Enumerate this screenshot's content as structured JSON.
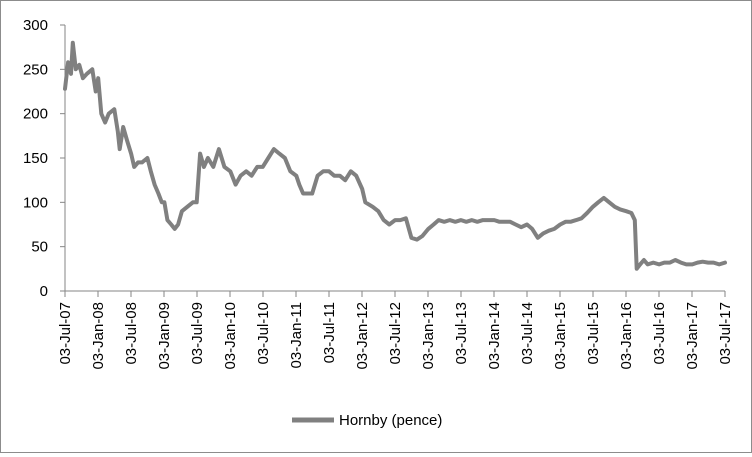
{
  "chart_data": {
    "type": "line",
    "title": "",
    "xlabel": "",
    "ylabel": "",
    "ylim": [
      0,
      300
    ],
    "y_ticks": [
      0,
      50,
      100,
      150,
      200,
      250,
      300
    ],
    "x_range": [
      "2007-07-03",
      "2017-07-03"
    ],
    "x_tick_labels": [
      "03-Jul-07",
      "03-Jan-08",
      "03-Jul-08",
      "03-Jan-09",
      "03-Jul-09",
      "03-Jan-10",
      "03-Jul-10",
      "03-Jan-11",
      "03-Jul-11",
      "03-Jan-12",
      "03-Jul-12",
      "03-Jan-13",
      "03-Jul-13",
      "03-Jan-14",
      "03-Jul-14",
      "03-Jan-15",
      "03-Jul-15",
      "03-Jan-16",
      "03-Jul-16",
      "03-Jan-17",
      "03-Jul-17"
    ],
    "grid": false,
    "legend_position": "bottom",
    "series": [
      {
        "name": "Hornby (pence)",
        "color": "#808080",
        "points": [
          [
            "2007-07-03",
            228
          ],
          [
            "2007-07-20",
            258
          ],
          [
            "2007-08-05",
            245
          ],
          [
            "2007-08-15",
            280
          ],
          [
            "2007-09-01",
            250
          ],
          [
            "2007-09-20",
            255
          ],
          [
            "2007-10-10",
            240
          ],
          [
            "2007-11-01",
            245
          ],
          [
            "2007-12-01",
            250
          ],
          [
            "2007-12-20",
            225
          ],
          [
            "2008-01-03",
            240
          ],
          [
            "2008-01-20",
            200
          ],
          [
            "2008-02-10",
            190
          ],
          [
            "2008-03-01",
            200
          ],
          [
            "2008-04-01",
            205
          ],
          [
            "2008-04-20",
            180
          ],
          [
            "2008-05-01",
            160
          ],
          [
            "2008-05-20",
            185
          ],
          [
            "2008-06-10",
            170
          ],
          [
            "2008-07-03",
            155
          ],
          [
            "2008-07-20",
            140
          ],
          [
            "2008-08-10",
            145
          ],
          [
            "2008-09-01",
            145
          ],
          [
            "2008-10-01",
            150
          ],
          [
            "2008-10-20",
            135
          ],
          [
            "2008-11-10",
            120
          ],
          [
            "2008-12-01",
            110
          ],
          [
            "2008-12-20",
            100
          ],
          [
            "2009-01-03",
            100
          ],
          [
            "2009-01-20",
            80
          ],
          [
            "2009-02-10",
            75
          ],
          [
            "2009-03-01",
            70
          ],
          [
            "2009-03-20",
            75
          ],
          [
            "2009-04-10",
            90
          ],
          [
            "2009-05-10",
            95
          ],
          [
            "2009-06-10",
            100
          ],
          [
            "2009-07-01",
            100
          ],
          [
            "2009-07-20",
            155
          ],
          [
            "2009-08-10",
            140
          ],
          [
            "2009-09-01",
            150
          ],
          [
            "2009-10-01",
            140
          ],
          [
            "2009-11-01",
            160
          ],
          [
            "2009-12-01",
            140
          ],
          [
            "2010-01-03",
            135
          ],
          [
            "2010-02-01",
            120
          ],
          [
            "2010-03-01",
            130
          ],
          [
            "2010-04-01",
            135
          ],
          [
            "2010-05-01",
            130
          ],
          [
            "2010-06-01",
            140
          ],
          [
            "2010-07-01",
            140
          ],
          [
            "2010-08-01",
            150
          ],
          [
            "2010-09-01",
            160
          ],
          [
            "2010-10-01",
            155
          ],
          [
            "2010-11-01",
            150
          ],
          [
            "2010-12-01",
            135
          ],
          [
            "2011-01-03",
            130
          ],
          [
            "2011-01-20",
            120
          ],
          [
            "2011-02-10",
            110
          ],
          [
            "2011-03-01",
            110
          ],
          [
            "2011-04-01",
            110
          ],
          [
            "2011-05-01",
            130
          ],
          [
            "2011-06-01",
            135
          ],
          [
            "2011-07-03",
            135
          ],
          [
            "2011-08-01",
            130
          ],
          [
            "2011-09-01",
            130
          ],
          [
            "2011-10-01",
            125
          ],
          [
            "2011-11-01",
            135
          ],
          [
            "2011-12-01",
            130
          ],
          [
            "2012-01-03",
            115
          ],
          [
            "2012-01-20",
            100
          ],
          [
            "2012-03-01",
            95
          ],
          [
            "2012-04-01",
            90
          ],
          [
            "2012-05-01",
            80
          ],
          [
            "2012-06-01",
            75
          ],
          [
            "2012-07-03",
            80
          ],
          [
            "2012-08-01",
            80
          ],
          [
            "2012-09-01",
            82
          ],
          [
            "2012-10-01",
            60
          ],
          [
            "2012-11-01",
            58
          ],
          [
            "2012-12-01",
            62
          ],
          [
            "2013-01-03",
            70
          ],
          [
            "2013-02-01",
            75
          ],
          [
            "2013-03-01",
            80
          ],
          [
            "2013-04-01",
            78
          ],
          [
            "2013-05-01",
            80
          ],
          [
            "2013-06-01",
            78
          ],
          [
            "2013-07-03",
            80
          ],
          [
            "2013-08-01",
            78
          ],
          [
            "2013-09-01",
            80
          ],
          [
            "2013-10-01",
            78
          ],
          [
            "2013-11-01",
            80
          ],
          [
            "2013-12-01",
            80
          ],
          [
            "2014-01-03",
            80
          ],
          [
            "2014-02-01",
            78
          ],
          [
            "2014-03-01",
            78
          ],
          [
            "2014-04-01",
            78
          ],
          [
            "2014-05-01",
            75
          ],
          [
            "2014-06-01",
            72
          ],
          [
            "2014-07-03",
            75
          ],
          [
            "2014-08-01",
            70
          ],
          [
            "2014-09-01",
            60
          ],
          [
            "2014-10-01",
            65
          ],
          [
            "2014-11-01",
            68
          ],
          [
            "2014-12-01",
            70
          ],
          [
            "2015-01-03",
            75
          ],
          [
            "2015-02-01",
            78
          ],
          [
            "2015-03-01",
            78
          ],
          [
            "2015-04-01",
            80
          ],
          [
            "2015-05-01",
            82
          ],
          [
            "2015-06-01",
            88
          ],
          [
            "2015-07-03",
            95
          ],
          [
            "2015-08-01",
            100
          ],
          [
            "2015-09-01",
            105
          ],
          [
            "2015-10-01",
            100
          ],
          [
            "2015-11-01",
            95
          ],
          [
            "2015-12-01",
            92
          ],
          [
            "2016-01-03",
            90
          ],
          [
            "2016-02-01",
            88
          ],
          [
            "2016-02-20",
            80
          ],
          [
            "2016-03-01",
            25
          ],
          [
            "2016-03-20",
            30
          ],
          [
            "2016-04-10",
            35
          ],
          [
            "2016-05-01",
            30
          ],
          [
            "2016-06-01",
            32
          ],
          [
            "2016-07-03",
            30
          ],
          [
            "2016-08-01",
            32
          ],
          [
            "2016-09-01",
            32
          ],
          [
            "2016-10-01",
            35
          ],
          [
            "2016-11-01",
            32
          ],
          [
            "2016-12-01",
            30
          ],
          [
            "2017-01-03",
            30
          ],
          [
            "2017-02-01",
            32
          ],
          [
            "2017-03-01",
            33
          ],
          [
            "2017-04-01",
            32
          ],
          [
            "2017-05-01",
            32
          ],
          [
            "2017-06-01",
            30
          ],
          [
            "2017-07-03",
            32
          ]
        ]
      }
    ]
  }
}
